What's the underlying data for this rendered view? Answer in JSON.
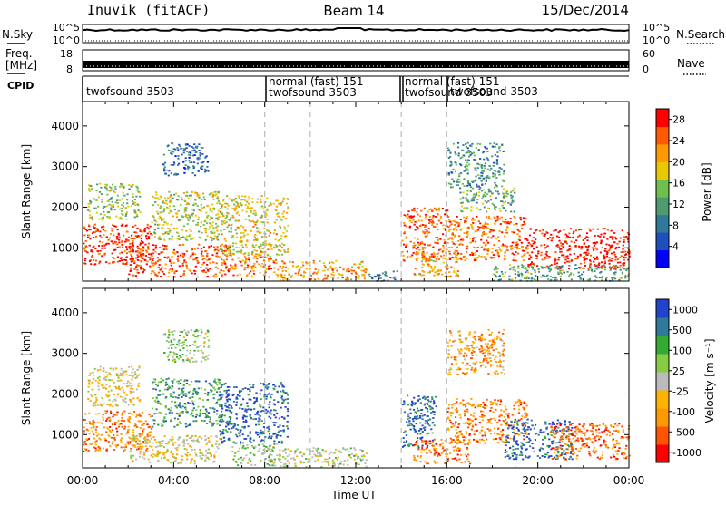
{
  "header": {
    "title_left": "Inuvik (fitACF)",
    "title_center": "Beam 14",
    "title_right": "15/Dec/2014"
  },
  "top_strips": {
    "nsky_label": "N.Sky",
    "nsky_ticks": [
      "10^5",
      "10^0"
    ],
    "nsearch_label": "N.Search",
    "nsearch_ticks": [
      "10^5",
      "10^0"
    ],
    "freq_label_1": "Freq.",
    "freq_label_2": "[MHz]",
    "freq_ticks": [
      "18",
      "8"
    ],
    "nave_label": "Nave",
    "nave_ticks": [
      "60",
      "0"
    ],
    "cpid_label": "CPID",
    "cpid_segments": [
      {
        "line1": "twofsound 3503",
        "line2": ""
      },
      {
        "line1": "normal (fast) 151",
        "line2": "twofsound 3503"
      },
      {
        "line1": "normal (fast) 151",
        "line2": "twofsound 3503"
      },
      {
        "line1": "twofsound 3503",
        "line2": ""
      }
    ]
  },
  "colors": {
    "power_scale": [
      "#0000ff",
      "#1f4fbf",
      "#2f7a9a",
      "#4f9a6f",
      "#6fbf4f",
      "#e8c800",
      "#ff9900",
      "#ff5a00",
      "#ff0000"
    ],
    "velocity_scale": [
      "#ff0000",
      "#ff5500",
      "#ff9900",
      "#ffb300",
      "#bbbbbb",
      "#88cc44",
      "#33aa33",
      "#2f7a9a",
      "#2244cc"
    ]
  },
  "chart_data": [
    {
      "type": "heatmap",
      "name": "power-panel",
      "xlabel": "",
      "ylabel": "Slant Range [km]",
      "x_ticks": [
        "00:00",
        "04:00",
        "08:00",
        "12:00",
        "16:00",
        "20:00",
        "00:00"
      ],
      "y_ticks": [
        "1000",
        "2000",
        "3000",
        "4000"
      ],
      "xlim_hours": [
        0,
        24
      ],
      "ylim_km": [
        180,
        4600
      ],
      "colorbar": {
        "label": "Power [dB]",
        "ticks": [
          "28",
          "24",
          "20",
          "16",
          "12",
          "8",
          "4"
        ],
        "range": [
          0,
          30
        ]
      },
      "blobs": [
        {
          "t0": 0.0,
          "t1": 3.2,
          "r0": 600,
          "r1": 1600,
          "level": 0.92
        },
        {
          "t0": 0.2,
          "t1": 2.5,
          "r0": 1700,
          "r1": 2600,
          "level": 0.5
        },
        {
          "t0": 2.0,
          "t1": 6.5,
          "r0": 300,
          "r1": 1100,
          "level": 0.85
        },
        {
          "t0": 3.0,
          "t1": 6.0,
          "r0": 1200,
          "r1": 2400,
          "level": 0.55
        },
        {
          "t0": 6.0,
          "t1": 9.0,
          "r0": 800,
          "r1": 2300,
          "level": 0.62
        },
        {
          "t0": 6.5,
          "t1": 8.5,
          "r0": 300,
          "r1": 800,
          "level": 0.8
        },
        {
          "t0": 8.5,
          "t1": 12.5,
          "r0": 220,
          "r1": 700,
          "level": 0.72
        },
        {
          "t0": 12.5,
          "t1": 14.0,
          "r0": 200,
          "r1": 450,
          "level": 0.3
        },
        {
          "t0": 14.0,
          "t1": 16.0,
          "r0": 700,
          "r1": 2000,
          "level": 0.85
        },
        {
          "t0": 14.5,
          "t1": 16.5,
          "r0": 300,
          "r1": 900,
          "level": 0.7
        },
        {
          "t0": 16.0,
          "t1": 19.5,
          "r0": 700,
          "r1": 1800,
          "level": 0.82
        },
        {
          "t0": 16.5,
          "t1": 19.0,
          "r0": 1900,
          "r1": 2500,
          "level": 0.45
        },
        {
          "t0": 19.5,
          "t1": 24.0,
          "r0": 500,
          "r1": 1500,
          "level": 0.95
        },
        {
          "t0": 18.0,
          "t1": 24.0,
          "r0": 200,
          "r1": 600,
          "level": 0.4
        },
        {
          "t0": 16.0,
          "t1": 18.5,
          "r0": 2500,
          "r1": 3600,
          "level": 0.35
        },
        {
          "t0": 3.5,
          "t1": 5.5,
          "r0": 2800,
          "r1": 3600,
          "level": 0.25
        }
      ]
    },
    {
      "type": "heatmap",
      "name": "velocity-panel",
      "xlabel": "Time UT",
      "ylabel": "Slant Range [km]",
      "x_ticks": [
        "00:00",
        "04:00",
        "08:00",
        "12:00",
        "16:00",
        "20:00",
        "00:00"
      ],
      "y_ticks": [
        "1000",
        "2000",
        "3000",
        "4000"
      ],
      "xlim_hours": [
        0,
        24
      ],
      "ylim_km": [
        180,
        4600
      ],
      "colorbar": {
        "label": "Velocity [m s⁻¹]",
        "ticks": [
          "1000",
          "500",
          "100",
          "25",
          "-25",
          "-100",
          "-500",
          "-1000"
        ],
        "range": [
          -1000,
          1000
        ]
      },
      "blobs": [
        {
          "t0": 0.0,
          "t1": 3.0,
          "r0": 600,
          "r1": 1600,
          "level": 0.25
        },
        {
          "t0": 0.2,
          "t1": 2.5,
          "r0": 1700,
          "r1": 2700,
          "level": 0.45
        },
        {
          "t0": 2.0,
          "t1": 6.0,
          "r0": 300,
          "r1": 1000,
          "level": 0.45
        },
        {
          "t0": 3.0,
          "t1": 6.0,
          "r0": 1200,
          "r1": 2400,
          "level": 0.75
        },
        {
          "t0": 6.0,
          "t1": 9.0,
          "r0": 800,
          "r1": 2300,
          "level": 0.9
        },
        {
          "t0": 6.5,
          "t1": 8.5,
          "r0": 250,
          "r1": 800,
          "level": 0.6
        },
        {
          "t0": 8.5,
          "t1": 12.5,
          "r0": 220,
          "r1": 700,
          "level": 0.55
        },
        {
          "t0": 14.0,
          "t1": 15.5,
          "r0": 700,
          "r1": 2000,
          "level": 0.88
        },
        {
          "t0": 14.5,
          "t1": 17.0,
          "r0": 300,
          "r1": 900,
          "level": 0.2
        },
        {
          "t0": 16.0,
          "t1": 19.5,
          "r0": 800,
          "r1": 1900,
          "level": 0.25
        },
        {
          "t0": 18.5,
          "t1": 21.5,
          "r0": 400,
          "r1": 1400,
          "level": 0.9
        },
        {
          "t0": 20.5,
          "t1": 24.0,
          "r0": 400,
          "r1": 1300,
          "level": 0.2
        },
        {
          "t0": 16.0,
          "t1": 18.5,
          "r0": 2500,
          "r1": 3600,
          "level": 0.3
        },
        {
          "t0": 3.5,
          "t1": 5.5,
          "r0": 2800,
          "r1": 3600,
          "level": 0.6
        }
      ]
    }
  ]
}
